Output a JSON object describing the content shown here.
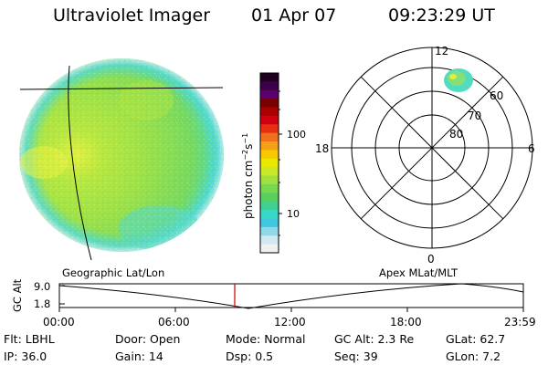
{
  "header": {
    "title": "Ultraviolet Imager",
    "date": "01 Apr 07",
    "time": "09:23:29 UT"
  },
  "colorbar": {
    "label": "photon cm^-2 s^-1",
    "label_main": "photon cm",
    "label_exp1": "−2",
    "label_s": "s",
    "label_exp2": "−1",
    "ticks": [
      "100",
      "10"
    ],
    "colors_top_to_bottom": [
      "#200020",
      "#3c0048",
      "#5a0070",
      "#7a0000",
      "#aa0000",
      "#d00010",
      "#e83010",
      "#f07020",
      "#f6a018",
      "#f8c800",
      "#e8e800",
      "#c8e828",
      "#a0e040",
      "#78d850",
      "#58d060",
      "#40d090",
      "#38d8c8",
      "#40c8e0",
      "#90d8e8",
      "#d0e8f0",
      "#f0f0f0"
    ]
  },
  "polar_plot": {
    "labels": {
      "top": "12",
      "bottom": "0",
      "left": "18",
      "right": "6"
    },
    "lat_labels": [
      "60",
      "70",
      "80"
    ]
  },
  "timeline": {
    "ylabel": "GC Alt",
    "yticks": [
      "9.0",
      "1.8"
    ],
    "left_caption": "Geographic Lat/Lon",
    "right_caption": "Apex MLat/MLT",
    "xticks": [
      "00:00",
      "06:00",
      "12:00",
      "18:00",
      "23:59"
    ],
    "current_time_marker": "09:23"
  },
  "footer": {
    "row1": {
      "filter": "Flt: LBHL",
      "door": "Door: Open",
      "mode": "Mode: Normal",
      "gc_alt": "GC Alt: 2.3 Re",
      "glat": "GLat:  62.7"
    },
    "row2": {
      "ip": "IP: 36.0",
      "gain": "Gain: 14",
      "dsp": "Dsp:       0.5",
      "seq": "Seq: 39",
      "glon": "GLon:    7.2"
    }
  },
  "colors": {
    "aurora_green": "#a8e048",
    "aurora_cyan": "#50d8d8",
    "aurora_yellow": "#e8f040",
    "marker_red": "#cc0000"
  }
}
